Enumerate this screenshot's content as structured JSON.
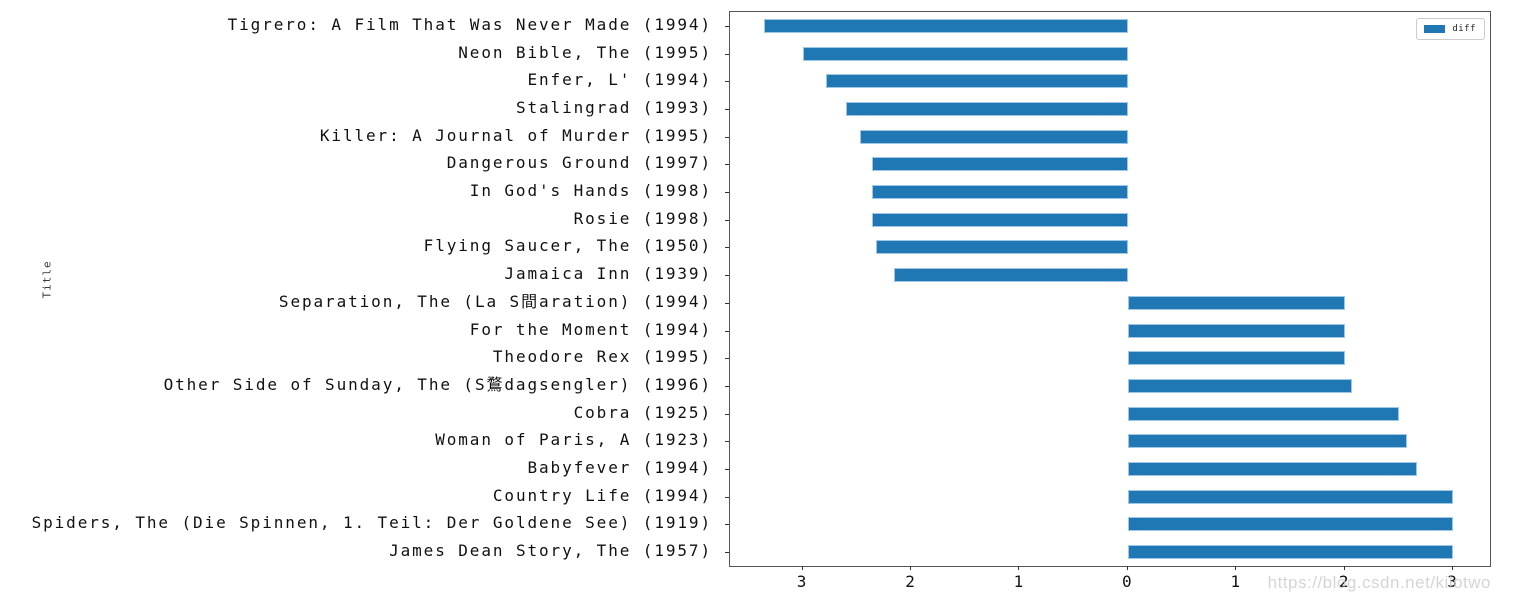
{
  "y_axis_label": "Title",
  "legend": {
    "label": "diff",
    "swatch_color": "#1f77b4"
  },
  "watermark": "https://blog.csdn.net/kilotwo",
  "chart_data": {
    "type": "bar",
    "orientation": "horizontal",
    "title": "",
    "xlabel": "",
    "ylabel": "Title",
    "series_name": "diff",
    "bar_color": "#1f77b4",
    "grid": false,
    "legend_position": "upper right",
    "xlim": [
      -3.67,
      3.34
    ],
    "x_ticks": [
      {
        "value": -3,
        "label": "3"
      },
      {
        "value": -2,
        "label": "2"
      },
      {
        "value": -1,
        "label": "1"
      },
      {
        "value": 0,
        "label": "0"
      },
      {
        "value": 1,
        "label": "1"
      },
      {
        "value": 2,
        "label": "2"
      },
      {
        "value": 3,
        "label": "3"
      }
    ],
    "categories": [
      "Tigrero: A Film That Was Never Made (1994)",
      "Neon Bible, The (1995)",
      "Enfer, L' (1994)",
      "Stalingrad (1993)",
      "Killer: A Journal of Murder (1995)",
      "Dangerous Ground (1997)",
      "In God's Hands (1998)",
      "Rosie (1998)",
      "Flying Saucer, The (1950)",
      "Jamaica Inn (1939)",
      "Separation, The (La S間aration) (1994)",
      "For the Moment (1994)",
      "Theodore Rex (1995)",
      "Other Side of Sunday, The (S鶩dagsengler) (1996)",
      "Cobra (1925)",
      "Woman of Paris, A (1923)",
      "Babyfever (1994)",
      "Country Life (1994)",
      "Spiders, The (Die Spinnen, 1. Teil: Der Goldene See) (1919)",
      "James Dean Story, The (1957)"
    ],
    "values": [
      -3.36,
      -3.0,
      -2.78,
      -2.6,
      -2.47,
      -2.36,
      -2.36,
      -2.36,
      -2.32,
      -2.16,
      2.0,
      2.0,
      2.0,
      2.07,
      2.5,
      2.57,
      2.67,
      3.0,
      3.0,
      3.0
    ]
  }
}
